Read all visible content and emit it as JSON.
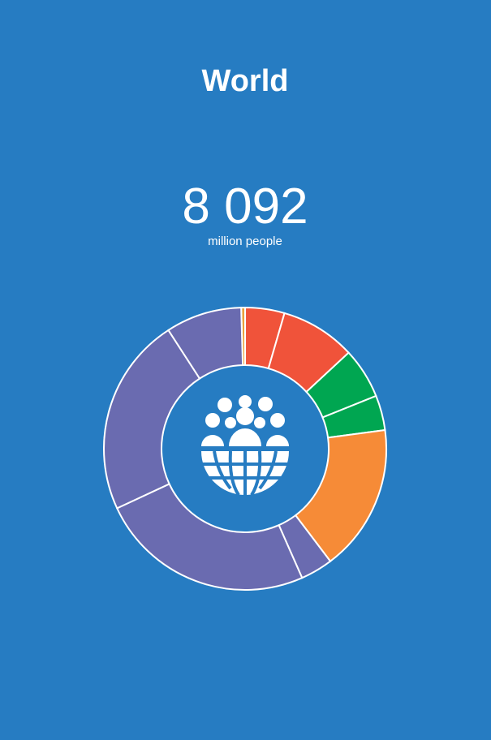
{
  "chart_data": {
    "type": "donut",
    "title": "World",
    "headline_value": "8 092",
    "headline_unit": "million people",
    "values": [
      0.45,
      4.5,
      8.6,
      5.8,
      4.0,
      16.8,
      3.7,
      24.7,
      22.8,
      8.7
    ],
    "colors": [
      "#e9a23b",
      "#f0533a",
      "#f0533a",
      "#00a651",
      "#00a651",
      "#f68b37",
      "#6a6bb0",
      "#6a6bb0",
      "#6a6bb0",
      "#6a6bb0"
    ]
  }
}
